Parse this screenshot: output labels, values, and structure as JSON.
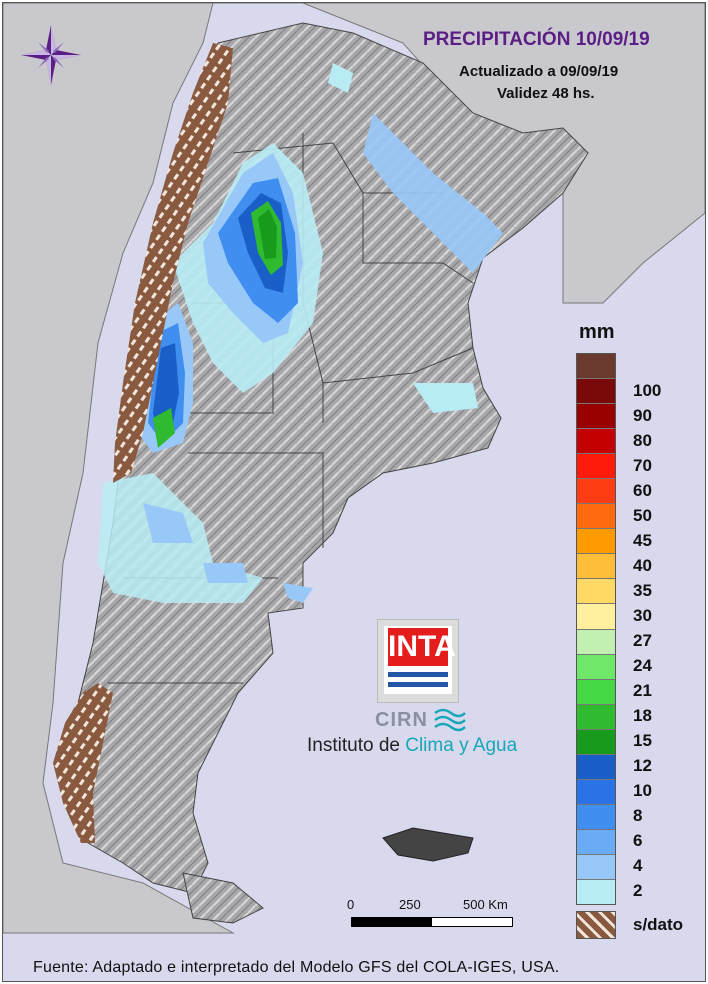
{
  "header": {
    "title": "PRECIPITACIÓN 10/09/19",
    "updated": "Actualizado a 09/09/19",
    "validity": "Validez 48 hs."
  },
  "legend": {
    "unit": "mm",
    "classes": [
      {
        "label": "",
        "color": "#6b3a2f"
      },
      {
        "label": "100",
        "color": "#7a0a0a"
      },
      {
        "label": "90",
        "color": "#990000"
      },
      {
        "label": "80",
        "color": "#c40000"
      },
      {
        "label": "70",
        "color": "#ff1a0a"
      },
      {
        "label": "60",
        "color": "#ff3c14"
      },
      {
        "label": "50",
        "color": "#ff6a10"
      },
      {
        "label": "45",
        "color": "#ff9a00"
      },
      {
        "label": "40",
        "color": "#ffbe3a"
      },
      {
        "label": "35",
        "color": "#ffd866"
      },
      {
        "label": "30",
        "color": "#fff0a0"
      },
      {
        "label": "27",
        "color": "#c2f0b0"
      },
      {
        "label": "24",
        "color": "#6fe86a"
      },
      {
        "label": "21",
        "color": "#44d944"
      },
      {
        "label": "18",
        "color": "#2fba2f"
      },
      {
        "label": "15",
        "color": "#189a1c"
      },
      {
        "label": "12",
        "color": "#1a5fc8"
      },
      {
        "label": "10",
        "color": "#2a72e6"
      },
      {
        "label": "8",
        "color": "#3f8ef0"
      },
      {
        "label": "6",
        "color": "#6aabf5"
      },
      {
        "label": "4",
        "color": "#98c8f8"
      },
      {
        "label": "2",
        "color": "#b8ecf5"
      }
    ],
    "no_data_label": "s/dato"
  },
  "logo": {
    "inta": "INTA",
    "cirn": "CIRN",
    "institute_prefix": "Instituto de",
    "institute_accent": "Clima y Agua"
  },
  "scale": {
    "labels": [
      "0",
      "250",
      "500 Km"
    ]
  },
  "footer": "Fuente: Adaptado e interpretado del Modelo GFS del COLA-IGES, USA.",
  "colors": {
    "ocean": "#d9d9ee",
    "land": "#a9a9ab",
    "neighbors": "#c8c8cc",
    "title": "#5b1e86",
    "no_data_brown": "#8a5a40"
  }
}
